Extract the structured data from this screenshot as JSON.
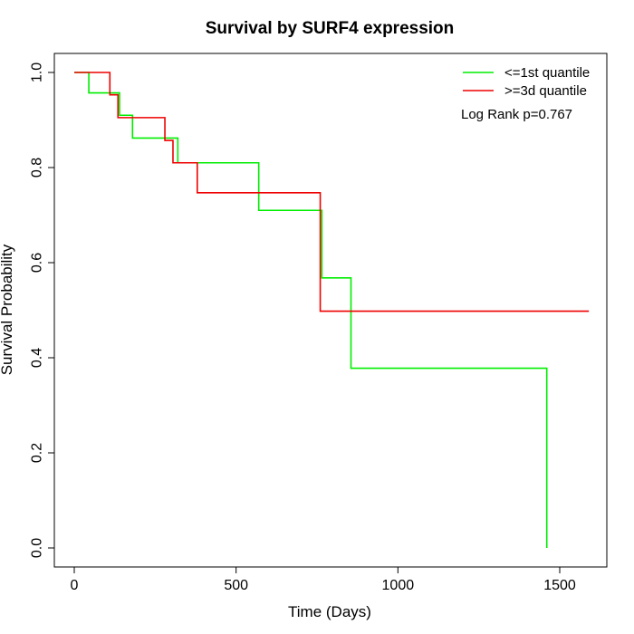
{
  "chart_data": {
    "type": "line",
    "title": "Survival by SURF4 expression",
    "xlabel": "Time (Days)",
    "ylabel": "Survival Probability",
    "xlim": [
      0,
      1600
    ],
    "ylim": [
      0,
      1
    ],
    "x_ticks": [
      0,
      500,
      1000,
      1500
    ],
    "y_ticks": [
      0.0,
      0.2,
      0.4,
      0.6,
      0.8,
      1.0
    ],
    "x_tick_labels": [
      "0",
      "500",
      "1000",
      "1500"
    ],
    "y_tick_labels": [
      "0.0",
      "0.2",
      "0.4",
      "0.6",
      "0.8",
      "1.0"
    ],
    "grid": false,
    "legend_position": "top-right",
    "annotation": "Log Rank p=0.767",
    "series": [
      {
        "name": "<=1st quantile",
        "color": "#00ee00",
        "x": [
          0,
          45,
          140,
          180,
          320,
          570,
          765,
          855,
          1460,
          1460
        ],
        "y": [
          1.0,
          0.957,
          0.91,
          0.862,
          0.81,
          0.71,
          0.568,
          0.378,
          0.378,
          0.0
        ]
      },
      {
        "name": ">=3d quantile",
        "color": "#ee0000",
        "x": [
          0,
          110,
          135,
          280,
          305,
          380,
          760,
          1590
        ],
        "y": [
          1.0,
          0.953,
          0.905,
          0.857,
          0.81,
          0.747,
          0.498,
          0.498
        ]
      }
    ]
  }
}
